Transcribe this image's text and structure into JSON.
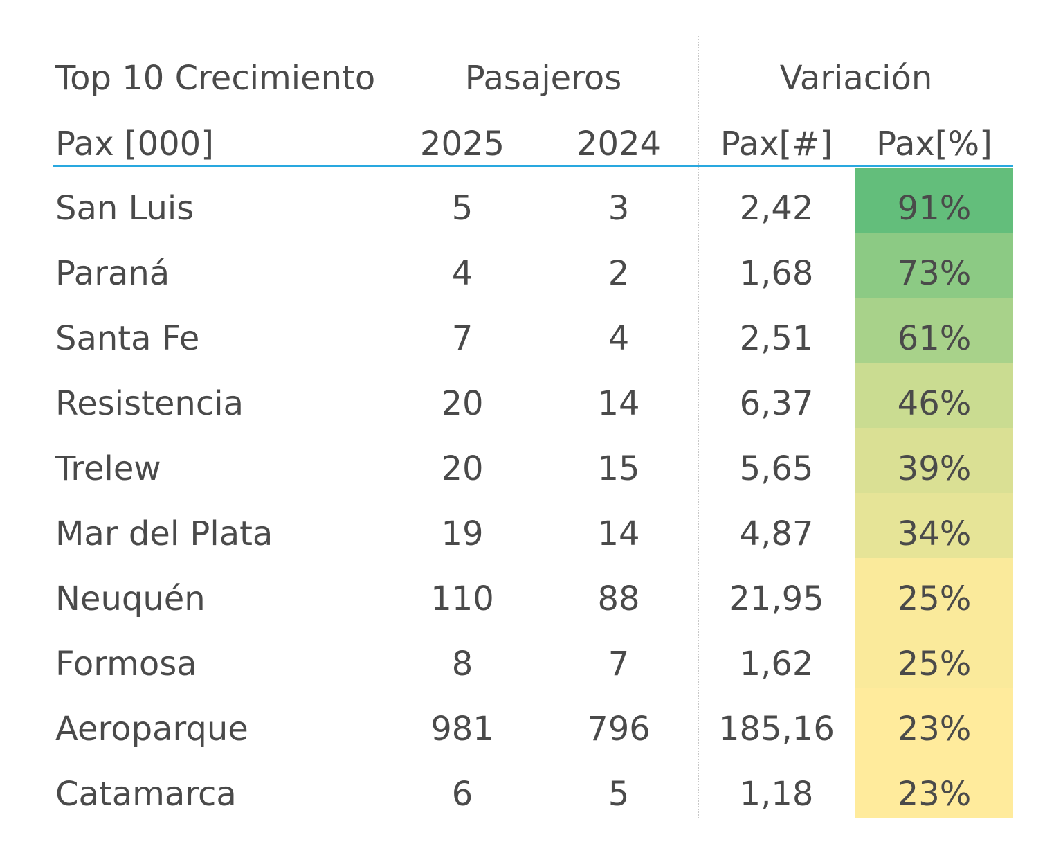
{
  "chart_data": {
    "type": "table",
    "title": "Top 10 Crecimiento",
    "header_groups": {
      "label_column": "Top 10 Crecimiento",
      "passengers": "Pasajeros",
      "variation": "Variación"
    },
    "columns": [
      "Pax [000]",
      "2025",
      "2024",
      "Pax[#]",
      "Pax[%]"
    ],
    "rows": [
      {
        "name": "San Luis",
        "y2025": "5",
        "y2024": "3",
        "pax_num": "2,42",
        "pax_pct": "91%",
        "pct": 91
      },
      {
        "name": "Paraná",
        "y2025": "4",
        "y2024": "2",
        "pax_num": "1,68",
        "pax_pct": "73%",
        "pct": 73
      },
      {
        "name": "Santa Fe",
        "y2025": "7",
        "y2024": "4",
        "pax_num": "2,51",
        "pax_pct": "61%",
        "pct": 61
      },
      {
        "name": "Resistencia",
        "y2025": "20",
        "y2024": "14",
        "pax_num": "6,37",
        "pax_pct": "46%",
        "pct": 46
      },
      {
        "name": "Trelew",
        "y2025": "20",
        "y2024": "15",
        "pax_num": "5,65",
        "pax_pct": "39%",
        "pct": 39
      },
      {
        "name": "Mar del Plata",
        "y2025": "19",
        "y2024": "14",
        "pax_num": "4,87",
        "pax_pct": "34%",
        "pct": 34
      },
      {
        "name": "Neuquén",
        "y2025": "110",
        "y2024": "88",
        "pax_num": "21,95",
        "pax_pct": "25%",
        "pct": 25
      },
      {
        "name": "Formosa",
        "y2025": "8",
        "y2024": "7",
        "pax_num": "1,62",
        "pax_pct": "25%",
        "pct": 25
      },
      {
        "name": "Aeroparque",
        "y2025": "981",
        "y2024": "796",
        "pax_num": "185,16",
        "pax_pct": "23%",
        "pct": 23
      },
      {
        "name": "Catamarca",
        "y2025": "6",
        "y2024": "5",
        "pax_num": "1,18",
        "pax_pct": "23%",
        "pct": 23
      }
    ],
    "heatmap_colors": {
      "high": "#63be7b",
      "low": "#ffeb9c"
    },
    "rule_color": "#29a8df",
    "text_color": "#4a4a4a"
  }
}
